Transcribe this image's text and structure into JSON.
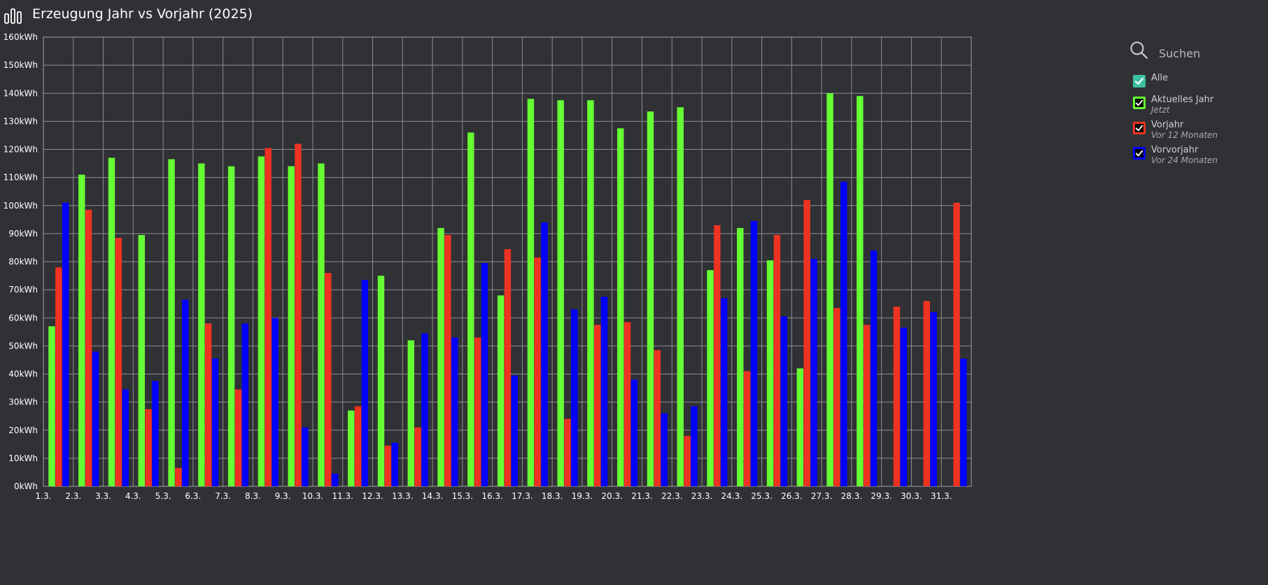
{
  "header": {
    "title": "Erzeugung Jahr vs Vorjahr (2025)",
    "icon": "bar-chart-icon"
  },
  "legend": {
    "search_placeholder": "Suchen",
    "all_label": "Alle",
    "all_color": "#3cbfa0",
    "items": [
      {
        "name": "Aktuelles Jahr",
        "sub": "Jetzt",
        "color": "#66ff33"
      },
      {
        "name": "Vorjahr",
        "sub": "Vor 12 Monaten",
        "color": "#ee3322"
      },
      {
        "name": "Vorvorjahr",
        "sub": "Vor 24 Monaten",
        "color": "#0000ff"
      }
    ]
  },
  "chart_data": {
    "type": "bar",
    "title": "Erzeugung Jahr vs Vorjahr (2025)",
    "xlabel": "",
    "ylabel": "",
    "ylim": [
      0,
      160
    ],
    "y_unit": "kWh",
    "yticks": [
      "0kWh",
      "10kWh",
      "20kWh",
      "30kWh",
      "40kWh",
      "50kWh",
      "60kWh",
      "70kWh",
      "80kWh",
      "90kWh",
      "100kWh",
      "110kWh",
      "120kWh",
      "130kWh",
      "140kWh",
      "150kWh",
      "160kWh"
    ],
    "grid": true,
    "legend_position": "right",
    "categories": [
      "1.3.",
      "2.3.",
      "3.3.",
      "4.3.",
      "5.3.",
      "6.3.",
      "7.3.",
      "8.3.",
      "9.3.",
      "10.3.",
      "11.3.",
      "12.3.",
      "13.3.",
      "14.3.",
      "15.3.",
      "16.3.",
      "17.3.",
      "18.3.",
      "19.3.",
      "20.3.",
      "21.3.",
      "22.3.",
      "23.3.",
      "24.3.",
      "25.3.",
      "26.3.",
      "27.3.",
      "28.3.",
      "29.3.",
      "30.3.",
      "31.3."
    ],
    "series": [
      {
        "name": "Aktuelles Jahr",
        "color": "#66ff33",
        "values": [
          57,
          111,
          117,
          89.5,
          116.5,
          115,
          114,
          117.5,
          114,
          115,
          27,
          75,
          52,
          92,
          126,
          68,
          138,
          137.5,
          137.5,
          127.5,
          133.5,
          135,
          77,
          92,
          80.5,
          42,
          140,
          139,
          0,
          0,
          0
        ]
      },
      {
        "name": "Vorjahr",
        "color": "#ee3322",
        "values": [
          78,
          98.5,
          88.5,
          27.5,
          6.5,
          58,
          34.5,
          120.5,
          122,
          76,
          28.5,
          14.5,
          21,
          89.5,
          53,
          84.5,
          81.5,
          24,
          57.5,
          58.5,
          48.5,
          18,
          93,
          41,
          89.5,
          102,
          63.5,
          57.5,
          64,
          66,
          101
        ]
      },
      {
        "name": "Vorvorjahr",
        "color": "#0000ff",
        "values": [
          101,
          48,
          34.5,
          37.5,
          66.5,
          45.5,
          58,
          60,
          21,
          4.5,
          73.5,
          15.5,
          54.5,
          53,
          79.5,
          39.5,
          94,
          63,
          67.5,
          38,
          26,
          28.5,
          67,
          94.5,
          60.5,
          81,
          108.5,
          84,
          56.5,
          62,
          45.5
        ]
      }
    ]
  }
}
